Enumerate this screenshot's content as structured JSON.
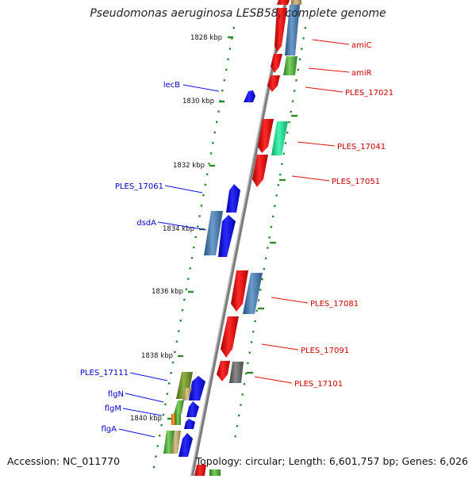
{
  "title": "Pseudomonas aeruginosa LESB58, complete genome",
  "footer": {
    "accession": "Accession: NC_011770",
    "stats": "Topology: circular; Length: 6,601,757 bp; Genes: 6,026"
  },
  "scale_labels": [
    "1828 kbp",
    "1830 kbp",
    "1832 kbp",
    "1834 kbp",
    "1836 kbp",
    "1838 kbp",
    "1840 kbp"
  ],
  "gene_labels_reverse": [
    "lecB",
    "PLES_17061",
    "dsdA",
    "PLES_17111",
    "flgN",
    "flgM",
    "flgA"
  ],
  "gene_labels_forward": [
    "amiC",
    "amiR",
    "PLES_17021",
    "PLES_17041",
    "PLES_17051",
    "PLES_17081",
    "PLES_17091",
    "PLES_17101"
  ],
  "colors": {
    "backbone": "#8a8a8a",
    "forward_gene": "#ee1111",
    "reverse_gene": "#1010ee",
    "forward_label": "#cc0000",
    "reverse_label": "#0000cc",
    "tick": "#2a8a2a",
    "steelblue_feature": "#4a7fb5",
    "teal_feature": "#22d38f",
    "green_feature": "#5aa64a",
    "olive_feature": "#6e8f2a",
    "tan_feature": "#bca46a",
    "gray_feature": "#777777",
    "orange_feature": "#e08a1a"
  }
}
